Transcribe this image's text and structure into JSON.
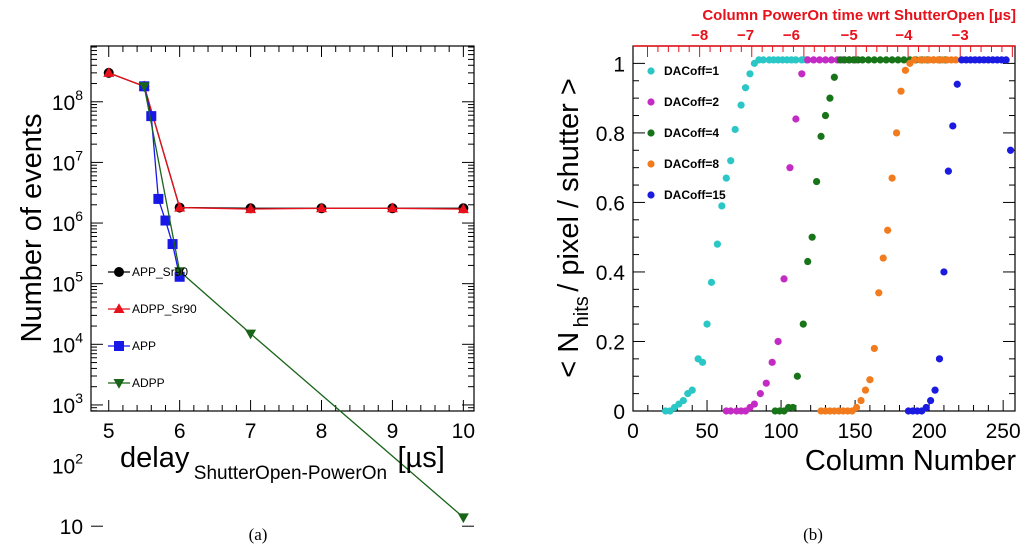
{
  "chart_data": [
    {
      "type": "line",
      "panel_label": "(a)",
      "xlabel": "delay",
      "xlabel_sub": "ShutterOpen-PowerOn",
      "xlabel_unit": "[µs]",
      "ylabel": "Number of events",
      "xlim": [
        4.75,
        10.15
      ],
      "ylim": [
        2.9,
        8.92
      ],
      "y_scale": "log",
      "x_ticks": [
        "5",
        "6",
        "7",
        "8",
        "9",
        "10"
      ],
      "y_ticks": [
        "10",
        "10",
        "10",
        "10",
        "10",
        "10",
        "10",
        "10"
      ],
      "y_tick_exponents": [
        "",
        "2",
        "3",
        "4",
        "5",
        "6",
        "7",
        "8"
      ],
      "series": [
        {
          "name": "APP_Sr90",
          "marker": "circle",
          "color": "#000000",
          "x": [
            5,
            5.5,
            6,
            7,
            8,
            9,
            10
          ],
          "y": [
            300000000,
            180000000,
            1800000,
            1750000,
            1750000,
            1750000,
            1750000
          ]
        },
        {
          "name": "ADPP_Sr90",
          "marker": "triangle-up",
          "color": "#e8111b",
          "x": [
            5,
            5.5,
            6,
            7,
            8,
            9,
            10
          ],
          "y": [
            300000000,
            180000000,
            1800000,
            1700000,
            1750000,
            1750000,
            1700000
          ]
        },
        {
          "name": "APP",
          "marker": "square",
          "color": "#1717e8",
          "x": [
            5.5,
            5.6,
            5.7,
            5.8,
            5.9,
            6
          ],
          "y": [
            180000000,
            58000000,
            2500000,
            1100000,
            450000,
            130000
          ]
        },
        {
          "name": "ADPP",
          "marker": "triangle-down",
          "color": "#186418",
          "x": [
            5.5,
            6,
            7,
            10
          ],
          "y": [
            180000000,
            160000,
            15000,
            14
          ]
        }
      ]
    },
    {
      "type": "scatter",
      "panel_label": "(b)",
      "xlabel": "Column Number",
      "ylabel_parts": [
        "< N",
        "hits",
        " / pixel / shutter >"
      ],
      "top_axis_label": "Column PowerOn time wrt ShutterOpen [µs]",
      "xlim": [
        0,
        258
      ],
      "ylim": [
        0,
        1.05
      ],
      "x_ticks": [
        "0",
        "50",
        "100",
        "150",
        "200",
        "250"
      ],
      "y_ticks": [
        "0",
        "0.2",
        "0.4",
        "0.6",
        "0.8",
        "1"
      ],
      "top_ticks": [
        "−8",
        "−7",
        "−6",
        "−5",
        "−4",
        "−3"
      ],
      "top_ticks_column": [
        45,
        76,
        107,
        146,
        183,
        221
      ],
      "series": [
        {
          "name": "DACoff=1",
          "color": "#2bc7c7",
          "x": [
            22,
            25,
            28,
            31,
            34,
            37,
            40,
            44,
            47,
            50,
            53,
            57,
            60,
            63,
            66,
            69,
            73,
            76,
            79,
            82,
            85,
            88,
            92,
            95,
            98,
            101,
            104,
            107,
            110,
            114,
            117
          ],
          "y": [
            0,
            0,
            0.01,
            0.02,
            0.03,
            0.05,
            0.06,
            0.15,
            0.14,
            0.25,
            0.37,
            0.48,
            0.59,
            0.67,
            0.72,
            0.81,
            0.88,
            0.93,
            0.97,
            1.0,
            1.01,
            1.01,
            1.01,
            1.01,
            1.01,
            1.01,
            1.01,
            1.01,
            1.01,
            1.01,
            1.01
          ]
        },
        {
          "name": "DACoff=2",
          "color": "#c42bc4",
          "x": [
            63,
            66,
            70,
            73,
            76,
            79,
            82,
            86,
            90,
            94,
            98,
            102,
            106,
            110,
            114,
            118,
            122,
            126,
            130,
            134,
            138,
            142,
            146,
            150
          ],
          "y": [
            0,
            0,
            0,
            0,
            0,
            0.01,
            0.02,
            0.05,
            0.08,
            0.14,
            0.2,
            0.38,
            0.7,
            0.84,
            0.97,
            1.01,
            1.01,
            1.01,
            1.01,
            1.01,
            1.01,
            1.01,
            1.01,
            1.01
          ]
        },
        {
          "name": "DACoff=4",
          "color": "#187418",
          "x": [
            96,
            99,
            102,
            105,
            108,
            111,
            115,
            118,
            121,
            124,
            127,
            130,
            133,
            136,
            140,
            143,
            146,
            149,
            152,
            155,
            159,
            163,
            167,
            171,
            175,
            179,
            183,
            187,
            191,
            195,
            199,
            203,
            207,
            211
          ],
          "y": [
            0,
            0,
            0,
            0.01,
            0.01,
            0.1,
            0.25,
            0.43,
            0.5,
            0.66,
            0.79,
            0.85,
            0.9,
            0.96,
            1.01,
            1.01,
            1.01,
            1.01,
            1.01,
            1.01,
            1.01,
            1.01,
            1.01,
            1.01,
            1.01,
            1.01,
            1.01,
            1.01,
            1.01,
            1.01,
            1.01,
            1.01,
            1.01,
            1.01
          ]
        },
        {
          "name": "DACoff=8",
          "color": "#f27b1d",
          "x": [
            127,
            130,
            133,
            136,
            139,
            142,
            145,
            148,
            151,
            154,
            157,
            160,
            163,
            166,
            169,
            172,
            175,
            178,
            181,
            184,
            187,
            190,
            194,
            197,
            200,
            203,
            206,
            209,
            212,
            215,
            218
          ],
          "y": [
            0,
            0,
            0,
            0,
            0,
            0,
            0,
            0,
            0.01,
            0.03,
            0.06,
            0.09,
            0.18,
            0.34,
            0.44,
            0.52,
            0.67,
            0.8,
            0.92,
            0.98,
            1.0,
            1.01,
            1.01,
            1.01,
            1.01,
            1.01,
            1.01,
            1.01,
            1.01,
            1.01,
            1.01
          ]
        },
        {
          "name": "DACoff=15",
          "color": "#1a1ae0",
          "x": [
            186,
            189,
            192,
            195,
            198,
            201,
            204,
            207,
            210,
            213,
            216,
            219,
            222,
            225,
            228,
            231,
            234,
            237,
            240,
            243,
            246,
            249,
            252,
            255
          ],
          "y": [
            0,
            0,
            0,
            0,
            0.01,
            0.03,
            0.06,
            0.15,
            0.4,
            0.69,
            0.82,
            0.94,
            1.01,
            1.01,
            1.01,
            1.01,
            1.01,
            1.01,
            1.01,
            1.01,
            1.01,
            1.01,
            1.01,
            0.75
          ]
        }
      ]
    }
  ]
}
